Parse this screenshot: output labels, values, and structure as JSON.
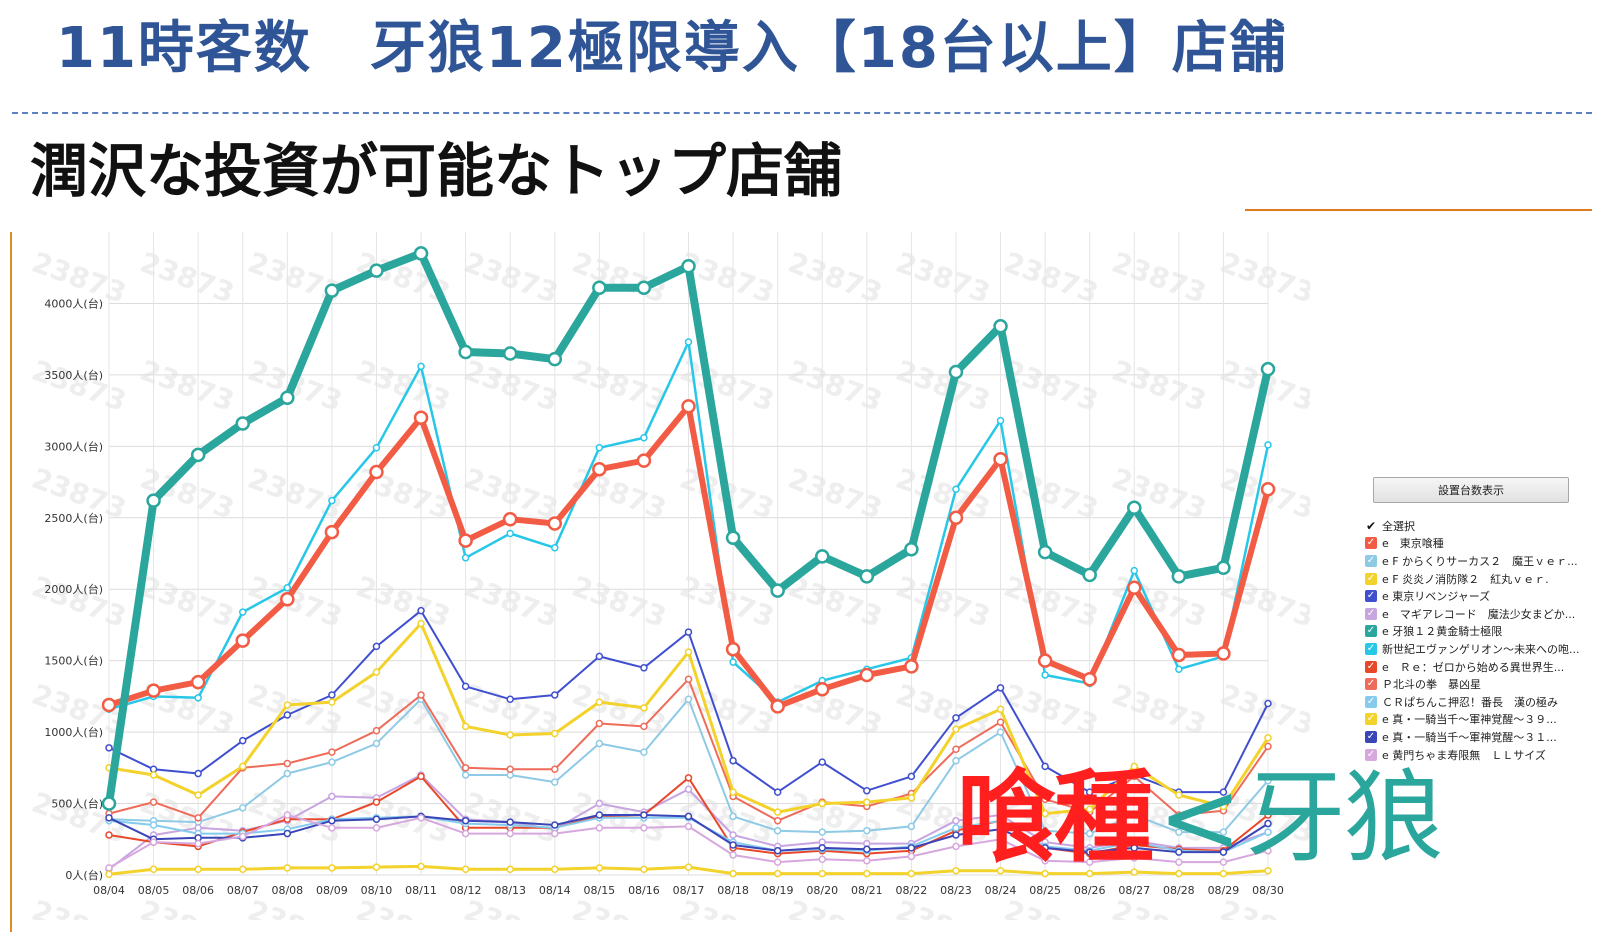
{
  "header": {
    "title": "11時客数　牙狼12極限導入【18台以上】店舗",
    "subtitle": "潤沢な投資が可能なトップ店舗"
  },
  "annotation": {
    "left": "喰種",
    "op": "<",
    "right": "牙狼"
  },
  "legend": {
    "button_label": "設置台数表示",
    "select_all_label": "全選択"
  },
  "colors": {
    "title": "#2f5597",
    "highlight_red": "#ff1f1f",
    "highlight_teal": "#2aa69d"
  },
  "chart_data": {
    "type": "line",
    "watermark": "23873",
    "ylim": [
      0,
      4500
    ],
    "y_ticks": [
      0,
      500,
      1000,
      1500,
      2000,
      2500,
      3000,
      3500,
      4000
    ],
    "y_tick_labels": [
      "0人(台)",
      "500人(台)",
      "1000人(台)",
      "1500人(台)",
      "2000人(台)",
      "2500人(台)",
      "3000人(台)",
      "3500人(台)",
      "4000人(台)"
    ],
    "grid": true,
    "legend_position": "right",
    "categories": [
      "08/04",
      "08/05",
      "08/06",
      "08/07",
      "08/08",
      "08/09",
      "08/10",
      "08/11",
      "08/12",
      "08/13",
      "08/14",
      "08/15",
      "08/16",
      "08/17",
      "08/18",
      "08/19",
      "08/20",
      "08/21",
      "08/22",
      "08/23",
      "08/24",
      "08/25",
      "08/26",
      "08/27",
      "08/28",
      "08/29",
      "08/30"
    ],
    "series": [
      {
        "name": "e　東京喰種",
        "color": "#f25c45",
        "width": 6,
        "highlight": true,
        "values": [
          1190,
          1290,
          1350,
          1640,
          1930,
          2400,
          2820,
          3200,
          2340,
          2490,
          2460,
          2840,
          2900,
          3280,
          1580,
          1180,
          1300,
          1400,
          1460,
          2500,
          2910,
          1500,
          1370,
          2010,
          1540,
          1550,
          2700
        ]
      },
      {
        "name": "e F からくりサーカス２　魔王ｖｅｒ...",
        "color": "#8ecae6",
        "width": 2,
        "values": [
          390,
          380,
          370,
          470,
          710,
          790,
          920,
          1230,
          700,
          700,
          650,
          920,
          860,
          1230,
          410,
          310,
          300,
          310,
          340,
          800,
          1000,
          310,
          290,
          420,
          300,
          300,
          660
        ]
      },
      {
        "name": "e F 炎炎ノ消防隊２　紅丸ｖｅｒ.",
        "color": "#f2d22b",
        "width": 3,
        "values": [
          750,
          700,
          560,
          760,
          1190,
          1210,
          1420,
          1760,
          1040,
          980,
          990,
          1210,
          1170,
          1560,
          580,
          440,
          500,
          510,
          540,
          1020,
          1160,
          430,
          460,
          760,
          560,
          480,
          960
        ]
      },
      {
        "name": "e 東京リベンジャーズ",
        "color": "#3f4fcf",
        "width": 2,
        "values": [
          890,
          740,
          710,
          940,
          1120,
          1260,
          1600,
          1850,
          1320,
          1230,
          1260,
          1530,
          1450,
          1700,
          800,
          580,
          790,
          590,
          690,
          1100,
          1310,
          760,
          580,
          700,
          580,
          580,
          1200
        ]
      },
      {
        "name": "e　マギアレコード　魔法少女まどか...",
        "color": "#c8a4e0",
        "width": 2,
        "values": [
          40,
          280,
          330,
          310,
          380,
          550,
          540,
          700,
          390,
          370,
          320,
          500,
          440,
          600,
          280,
          200,
          230,
          220,
          220,
          380,
          420,
          230,
          190,
          240,
          190,
          190,
          300
        ]
      },
      {
        "name": "e 牙狼１２黄金騎士極限",
        "color": "#2aa69d",
        "width": 8,
        "highlight": true,
        "values": [
          500,
          2620,
          2940,
          3160,
          3340,
          4090,
          4230,
          4350,
          3660,
          3650,
          3610,
          4110,
          4110,
          4260,
          2360,
          1990,
          2230,
          2090,
          2280,
          3520,
          3840,
          2260,
          2100,
          2570,
          2090,
          2150,
          3540
        ]
      },
      {
        "name": "新世紀エヴァンゲリオン〜未来への咆...",
        "color": "#27c7e8",
        "width": 2.5,
        "values": [
          1160,
          1250,
          1240,
          1840,
          2010,
          2620,
          2990,
          3560,
          2220,
          2390,
          2290,
          2990,
          3060,
          3730,
          1490,
          1210,
          1360,
          1440,
          1520,
          2700,
          3180,
          1400,
          1340,
          2130,
          1440,
          1530,
          3010
        ]
      },
      {
        "name": "e　Ｒｅ：ゼロから始める異世界生...",
        "color": "#e8482a",
        "width": 2,
        "values": [
          280,
          230,
          200,
          300,
          390,
          390,
          510,
          690,
          330,
          330,
          330,
          410,
          420,
          680,
          190,
          150,
          170,
          150,
          170,
          310,
          380,
          190,
          150,
          210,
          180,
          170,
          420
        ]
      },
      {
        "name": "Ｐ北斗の拳　暴凶星",
        "color": "#ef6b5a",
        "width": 2,
        "values": [
          430,
          510,
          400,
          750,
          780,
          860,
          1010,
          1260,
          750,
          740,
          740,
          1060,
          1040,
          1370,
          550,
          380,
          510,
          480,
          570,
          880,
          1070,
          530,
          440,
          690,
          420,
          450,
          900
        ]
      },
      {
        "name": "ＣＲぱちんこ押忍！番長　漢の極み",
        "color": "#86cbee",
        "width": 2,
        "values": [
          380,
          350,
          290,
          290,
          320,
          390,
          400,
          410,
          360,
          350,
          330,
          400,
          400,
          400,
          230,
          170,
          180,
          170,
          200,
          330,
          380,
          200,
          170,
          230,
          170,
          160,
          300
        ]
      },
      {
        "name": "e 真・一騎当千〜軍神覚醒〜３９...",
        "color": "#f2d22b",
        "width": 3,
        "values": [
          5,
          40,
          40,
          40,
          50,
          50,
          55,
          60,
          40,
          40,
          40,
          50,
          40,
          55,
          10,
          10,
          10,
          10,
          10,
          30,
          30,
          10,
          10,
          20,
          10,
          10,
          30
        ]
      },
      {
        "name": "e 真・一騎当千〜軍神覚醒〜３１...",
        "color": "#3a46b8",
        "width": 2,
        "values": [
          400,
          250,
          260,
          260,
          290,
          380,
          390,
          410,
          380,
          370,
          350,
          420,
          420,
          410,
          210,
          170,
          190,
          180,
          190,
          280,
          320,
          190,
          160,
          190,
          160,
          160,
          360
        ]
      },
      {
        "name": "e 黄門ちゃま寿限無　ＬＬサイズ",
        "color": "#d6a8de",
        "width": 2,
        "values": [
          50,
          230,
          220,
          270,
          420,
          330,
          330,
          400,
          290,
          290,
          290,
          330,
          330,
          340,
          140,
          90,
          110,
          100,
          130,
          200,
          250,
          100,
          90,
          120,
          90,
          90,
          170
        ]
      }
    ]
  }
}
